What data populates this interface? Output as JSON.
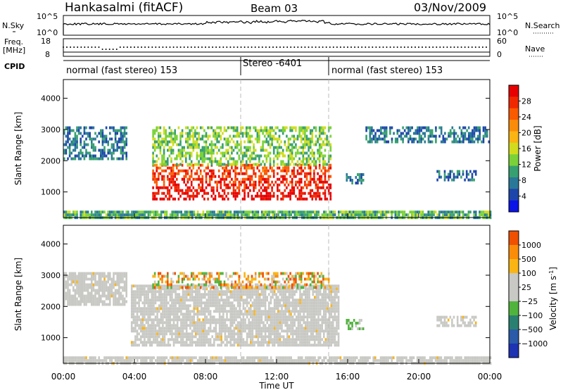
{
  "header": {
    "title": "Hankasalmi (fitACF)",
    "beam": "Beam 03",
    "date": "03/Nov/2009"
  },
  "nsky_panel": {
    "label": "N.Sky",
    "left_ticks": [
      "10^5",
      "10^0"
    ],
    "right_label": "N.Search",
    "right_ticks": [
      "10^5",
      "10^0"
    ]
  },
  "freq_panel": {
    "label_line1": "Freq.",
    "label_line2": "[MHz]",
    "left_ticks": [
      "18",
      "8"
    ],
    "right_label": "Nave",
    "right_ticks": [
      "60",
      "0"
    ]
  },
  "cpid": {
    "label": "CPID",
    "segments": [
      {
        "text": "normal (fast stereo) 153",
        "start_h": 0,
        "end_h": 10
      },
      {
        "text": "Stereo -6401",
        "start_h": 10,
        "end_h": 15
      },
      {
        "text": "normal (fast stereo) 153",
        "start_h": 15,
        "end_h": 24
      }
    ]
  },
  "power_panel": {
    "ylabel": "Slant Range [km]",
    "yticks": [
      "4000",
      "3000",
      "2000",
      "1000"
    ],
    "colorbar_label": "Power [dB]",
    "colorbar_ticks": [
      "28",
      "24",
      "20",
      "16",
      "12",
      "8",
      "4"
    ],
    "colors": [
      "#0a14e6",
      "#1e46aa",
      "#2a7898",
      "#37a070",
      "#7ad238",
      "#d2dc1e",
      "#fab414",
      "#fa8c0a",
      "#fa5a00",
      "#f02800",
      "#e60000"
    ]
  },
  "velocity_panel": {
    "ylabel": "Slant Range [km]",
    "yticks": [
      "4000",
      "3000",
      "2000",
      "1000"
    ],
    "colorbar_label": "Velocity [m s",
    "colorbar_label_sup": "-1",
    "colorbar_label_end": "]",
    "colorbar_ticks": [
      "1000",
      "500",
      "100",
      "25",
      "−25",
      "−100",
      "−500",
      "−1000"
    ],
    "colors": [
      "#1e32b4",
      "#2a5aa8",
      "#2a8070",
      "#50b43c",
      "#c8c8c4",
      "#c8c8c4",
      "#fab414",
      "#fa8c0a",
      "#f05000",
      "#e60000"
    ]
  },
  "xaxis": {
    "label": "Time UT",
    "ticks": [
      "00:00",
      "04:00",
      "08:00",
      "12:00",
      "16:00",
      "20:00",
      "00:00"
    ]
  },
  "chart_data": [
    {
      "type": "heatmap",
      "title": "Hankasalmi (fitACF)",
      "xlabel": "Time UT",
      "ylabel": "Slant Range [km]",
      "xlim_hours": [
        0,
        24
      ],
      "ylim": [
        180,
        4600
      ],
      "colorbar": "Power [dB]",
      "colorbar_range": [
        0,
        30
      ],
      "regions": [
        {
          "name": "high-latitude echoes (left)",
          "t": [
            0,
            3.6
          ],
          "range": [
            2100,
            3100
          ],
          "power_db": 6
        },
        {
          "name": "main band",
          "t": [
            5,
            15
          ],
          "range": [
            800,
            1900
          ],
          "power_db": 28
        },
        {
          "name": "upper layer",
          "t": [
            5,
            15
          ],
          "range": [
            1900,
            3100
          ],
          "power_db": 12
        },
        {
          "name": "post-16h patch",
          "t": [
            15.9,
            16.9
          ],
          "range": [
            1300,
            1600
          ],
          "power_db": 6
        },
        {
          "name": "evening patches",
          "t": [
            21,
            23.2
          ],
          "range": [
            1400,
            1700
          ],
          "power_db": 6
        },
        {
          "name": "evening upper",
          "t": [
            17,
            24
          ],
          "range": [
            2600,
            3100
          ],
          "power_db": 6
        },
        {
          "name": "ground scatter near range",
          "t": [
            0,
            24
          ],
          "range": [
            180,
            400
          ],
          "power_db": 10
        }
      ]
    },
    {
      "type": "heatmap",
      "xlabel": "Time UT",
      "ylabel": "Slant Range [km]",
      "xlim_hours": [
        0,
        24
      ],
      "ylim": [
        180,
        4600
      ],
      "colorbar": "Velocity [m s-1]",
      "colorbar_range": [
        -1000,
        1000
      ],
      "regions": [
        {
          "name": "ground scatter left",
          "t": [
            0,
            3.6
          ],
          "range": [
            2100,
            3100
          ],
          "velocity": 0
        },
        {
          "name": "ground scatter main",
          "t": [
            3.8,
            15.5
          ],
          "range": [
            800,
            2700
          ],
          "velocity": 0
        },
        {
          "name": "upper layer",
          "t": [
            5,
            15
          ],
          "range": [
            2600,
            3100
          ],
          "velocity": -300
        },
        {
          "name": "post-16h patch",
          "t": [
            15.9,
            16.9
          ],
          "range": [
            1300,
            1600
          ],
          "velocity": 150
        },
        {
          "name": "evening patches",
          "t": [
            21,
            23.2
          ],
          "range": [
            1400,
            1700
          ],
          "velocity": 0
        },
        {
          "name": "ground scatter near range",
          "t": [
            0,
            24
          ],
          "range": [
            180,
            400
          ],
          "velocity": 0
        }
      ]
    }
  ]
}
